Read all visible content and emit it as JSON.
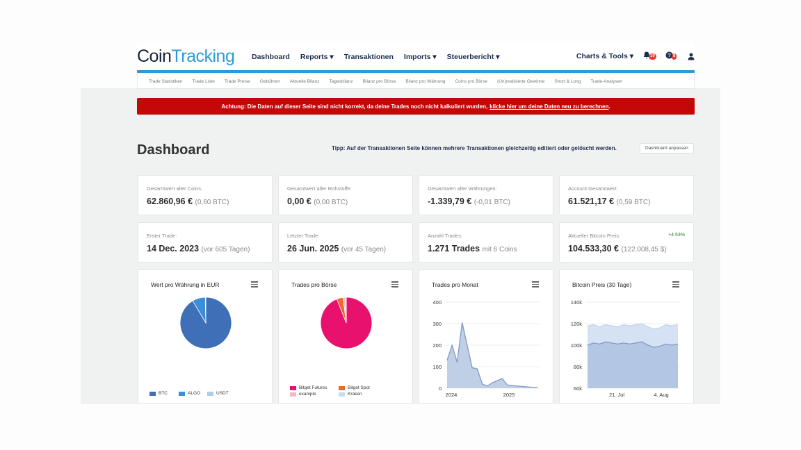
{
  "logo": {
    "part1": "Coin",
    "part2": "Tracking"
  },
  "nav": {
    "items": [
      "Dashboard",
      "Reports ▾",
      "Transaktionen",
      "Imports ▾",
      "Steuerbericht ▾"
    ],
    "right": "Charts & Tools ▾",
    "bell_badge": "10",
    "help_badge": "8"
  },
  "subnav": [
    "Trade Statistiken",
    "Trade Liste",
    "Trade Preise",
    "Gebühren",
    "Aktuelle Bilanz",
    "Tagesbilanz",
    "Bilanz pro Börse",
    "Bilanz pro Währung",
    "Coins pro Börse",
    "(Un)realisierte Gewinne",
    "Short & Long",
    "Trade-Analysen"
  ],
  "alert": {
    "text": "Achtung: Die Daten auf dieser Seite sind nicht korrekt, da deine Trades noch nicht kalkuliert wurden,",
    "link": "klicke hier um deine Daten neu zu berechnen",
    "end": "."
  },
  "page": {
    "title": "Dashboard",
    "tip": "Tipp: Auf der Transaktionen Seite können mehrere Transaktionen gleichzeitig editiert oder gelöscht werden.",
    "customize": "Dashboard anpassen"
  },
  "stats": [
    {
      "label": "Gesamtwert aller Coins:",
      "value": "62.860,96 €",
      "sub": "(0,60 BTC)"
    },
    {
      "label": "Gesamtwert aller Rohstoffe:",
      "value": "0,00 €",
      "sub": "(0,00 BTC)"
    },
    {
      "label": "Gesamtwert aller Währungen:",
      "value": "-1.339,79 €",
      "sub": "(-0,01 BTC)"
    },
    {
      "label": "Account Gesamtwert:",
      "value": "61.521,17 €",
      "sub": "(0,59 BTC)"
    },
    {
      "label": "Erster Trade:",
      "value": "14 Dec. 2023",
      "sub": "(vor 605 Tagen)"
    },
    {
      "label": "Letzter Trade:",
      "value": "26 Jun. 2025",
      "sub": "(vor 45 Tagen)"
    },
    {
      "label": "Anzahl Trades:",
      "value": "1.271 Trades",
      "sub": "mit 6 Coins"
    },
    {
      "label": "Aktueller Bitcoin Preis:",
      "value": "104.533,30 €",
      "sub": "(122.008,45 $)",
      "pct": "+4.53%"
    }
  ],
  "colors": {
    "accent": "#2f9bd6",
    "alert": "#c40808",
    "btc": "#3f6fb6",
    "futures": "#e8126e",
    "spot": "#e56c2a"
  },
  "chart_data": [
    {
      "type": "pie",
      "title": "Wert pro Währung in EUR",
      "labels": [
        "BTC",
        "ALGO",
        "USDT"
      ],
      "values": [
        91.5,
        8.2,
        0.3
      ],
      "colors": [
        "#3f6fb6",
        "#3a8fd8",
        "#a9cdeb"
      ]
    },
    {
      "type": "pie",
      "title": "Trades pro Börse",
      "labels": [
        "Bitget Futures",
        "Bitget Spot",
        "example",
        "Kraken"
      ],
      "values": [
        94,
        4,
        1.5,
        0.5
      ],
      "colors": [
        "#e8126e",
        "#e56c2a",
        "#f5b8c4",
        "#c8dcef"
      ]
    },
    {
      "type": "area",
      "title": "Trades pro Monat",
      "x": [
        "2023-12",
        "2024-01",
        "2024-02",
        "2024-03",
        "2024-04",
        "2024-05",
        "2024-06",
        "2024-07",
        "2024-08",
        "2024-09",
        "2024-10",
        "2024-11",
        "2024-12",
        "2025-01",
        "2025-02",
        "2025-03",
        "2025-04",
        "2025-05",
        "2025-06"
      ],
      "y": [
        130,
        200,
        120,
        305,
        200,
        95,
        90,
        20,
        10,
        25,
        35,
        45,
        15,
        12,
        10,
        8,
        6,
        4,
        3
      ],
      "ylim": [
        0,
        400
      ],
      "yticks": [
        "0",
        "100",
        "200",
        "300",
        "400"
      ],
      "xticks": [
        "2024",
        "2025"
      ]
    },
    {
      "type": "area",
      "title": "Bitcoin Preis (30 Tage)",
      "x": [
        "12 Jul",
        "14 Jul",
        "16 Jul",
        "18 Jul",
        "20 Jul",
        "22 Jul",
        "24 Jul",
        "26 Jul",
        "28 Jul",
        "30 Jul",
        "1 Aug",
        "3 Aug",
        "5 Aug",
        "7 Aug",
        "9 Aug",
        "11 Aug"
      ],
      "series": [
        {
          "values": [
            100,
            102,
            101,
            103,
            102,
            101,
            102,
            101,
            102,
            103,
            100,
            98,
            99,
            101,
            100,
            101
          ]
        },
        {
          "values": [
            118,
            119,
            117,
            119,
            118,
            117,
            119,
            118,
            119,
            120,
            117,
            115,
            116,
            119,
            118,
            119
          ]
        }
      ],
      "ylim": [
        60,
        140
      ],
      "yticks": [
        "60k",
        "80k",
        "100k",
        "120k",
        "140k"
      ],
      "xticks": [
        "21. Jul",
        "4. Aug"
      ]
    }
  ]
}
